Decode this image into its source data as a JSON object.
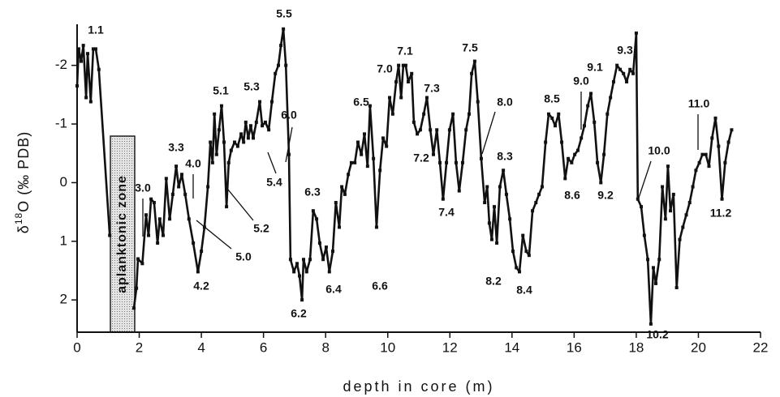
{
  "chart_data": {
    "type": "line",
    "xlabel": "depth in core (m)",
    "ylabel": {
      "prefix": "δ",
      "sup": "18",
      "rest": "O (‰ PDB)"
    },
    "zone_label": "aplanktonic zone",
    "xlim": [
      0,
      22
    ],
    "xticks": [
      0,
      2,
      4,
      6,
      8,
      10,
      12,
      14,
      16,
      18,
      20,
      22
    ],
    "ylim": [
      -2.7,
      2.55
    ],
    "y_inverted": true,
    "yticks": [
      -2,
      -1,
      0,
      1,
      2
    ],
    "grid": false,
    "color": "#111111",
    "markers": true,
    "annotations": [
      "1.1",
      "3.0",
      "3.3",
      "4.0",
      "4.2",
      "5.0",
      "5.1",
      "5.2",
      "5.3",
      "5.4",
      "5.5",
      "6.0",
      "6.2",
      "6.3",
      "6.4",
      "6.5",
      "6.6",
      "7.0",
      "7.1",
      "7.2",
      "7.3",
      "7.4",
      "7.5",
      "8.0",
      "8.2",
      "8.3",
      "8.4",
      "8.5",
      "8.6",
      "9.0",
      "9.1",
      "9.2",
      "9.3",
      "10.0",
      "10.2",
      "11.0",
      "11.2"
    ],
    "x": [
      0,
      0.05,
      0.13,
      0.2,
      0.29,
      0.34,
      0.44,
      0.52,
      0.6,
      0.7,
      1.05,
      null,
      1.83,
      1.91,
      1.96,
      2.1,
      2.22,
      2.3,
      2.38,
      2.48,
      2.59,
      2.66,
      2.77,
      2.87,
      2.98,
      3.08,
      3.19,
      3.27,
      3.37,
      3.48,
      3.6,
      3.74,
      3.89,
      4.0,
      4.1,
      4.21,
      4.29,
      4.36,
      4.42,
      4.49,
      4.57,
      4.65,
      4.73,
      4.81,
      4.88,
      4.96,
      5.07,
      5.17,
      5.28,
      5.36,
      5.43,
      5.51,
      5.59,
      5.67,
      5.77,
      5.88,
      5.96,
      6.06,
      6.17,
      6.27,
      6.38,
      6.48,
      6.56,
      6.64,
      6.72,
      6.82,
      6.87,
      6.98,
      7.08,
      7.16,
      7.24,
      7.29,
      7.39,
      7.5,
      7.6,
      7.71,
      7.81,
      7.92,
      8.02,
      8.12,
      8.23,
      8.33,
      8.44,
      8.52,
      8.62,
      8.73,
      8.83,
      8.94,
      9.04,
      9.15,
      9.25,
      9.35,
      9.43,
      9.54,
      9.64,
      9.75,
      9.85,
      9.96,
      10.06,
      10.16,
      10.27,
      10.35,
      10.43,
      10.5,
      10.58,
      10.66,
      10.77,
      10.84,
      10.95,
      11.05,
      11.16,
      11.26,
      11.37,
      11.47,
      11.58,
      11.68,
      11.78,
      11.89,
      11.99,
      12.1,
      12.2,
      12.3,
      12.41,
      12.52,
      12.62,
      12.7,
      12.8,
      12.9,
      13.01,
      13.12,
      13.2,
      13.27,
      13.35,
      13.43,
      13.51,
      13.61,
      13.72,
      13.82,
      13.93,
      14.03,
      14.14,
      14.24,
      14.35,
      14.46,
      14.55,
      14.66,
      14.77,
      14.87,
      14.97,
      15.08,
      15.18,
      15.29,
      15.39,
      15.5,
      15.6,
      15.71,
      15.81,
      15.92,
      16.02,
      16.12,
      16.23,
      16.33,
      16.44,
      16.54,
      16.65,
      16.75,
      16.86,
      16.96,
      17.07,
      17.17,
      17.27,
      17.38,
      17.48,
      17.59,
      17.69,
      17.8,
      17.9,
      18.0,
      18.05,
      18.16,
      18.26,
      18.37,
      18.47,
      18.55,
      18.63,
      18.74,
      18.84,
      18.94,
      19.02,
      19.1,
      19.2,
      19.3,
      19.4,
      19.5,
      19.61,
      19.72,
      19.82,
      19.92,
      20.03,
      20.13,
      20.24,
      20.34,
      20.44,
      20.55,
      20.65,
      20.76,
      20.86,
      20.97,
      21.07
    ],
    "values": [
      -1.65,
      -2.28,
      -2.07,
      -2.34,
      -1.45,
      -2.2,
      -1.38,
      -2.28,
      -2.28,
      -1.93,
      0.9,
      null,
      2.14,
      1.8,
      1.3,
      1.38,
      0.55,
      0.9,
      0.28,
      0.34,
      1.03,
      0.62,
      0.9,
      -0.07,
      0.62,
      0.2,
      -0.28,
      0.07,
      -0.14,
      0.2,
      0.62,
      1.03,
      1.52,
      1.17,
      0.76,
      0.07,
      -0.69,
      -0.34,
      -1.17,
      -0.48,
      -0.9,
      -1.31,
      -0.69,
      0.41,
      -0.34,
      -0.55,
      -0.69,
      -0.62,
      -0.83,
      -0.69,
      -1.03,
      -0.76,
      -0.97,
      -0.76,
      -1.03,
      -1.38,
      -0.97,
      -1.03,
      -0.9,
      -1.38,
      -1.86,
      -2.0,
      -2.34,
      -2.62,
      -2.0,
      -0.48,
      1.31,
      1.52,
      1.38,
      1.59,
      2.0,
      1.31,
      1.52,
      1.31,
      0.48,
      0.62,
      1.03,
      1.31,
      1.1,
      1.52,
      1.17,
      0.34,
      0.76,
      0.07,
      0.2,
      -0.14,
      -0.34,
      -0.34,
      -0.69,
      -0.48,
      -0.83,
      -0.28,
      -1.31,
      -0.41,
      0.76,
      -0.21,
      -0.76,
      -0.62,
      -1.45,
      -1.17,
      -1.72,
      -2.0,
      -1.45,
      -2.0,
      -2.0,
      -1.72,
      -1.86,
      -1.03,
      -0.83,
      -0.9,
      -1.17,
      -1.45,
      -0.9,
      -0.48,
      -0.9,
      -0.34,
      0.28,
      -0.34,
      -0.9,
      -1.17,
      -0.34,
      0.14,
      -0.34,
      -0.9,
      -1.17,
      -1.86,
      -2.07,
      -1.38,
      -0.41,
      0.34,
      0.07,
      0.69,
      0.97,
      0.41,
      1.03,
      0.07,
      -0.21,
      0.2,
      0.62,
      1.17,
      1.45,
      1.52,
      0.9,
      1.17,
      1.24,
      0.48,
      0.34,
      0.2,
      0.07,
      -0.69,
      -1.17,
      -1.1,
      -0.97,
      -1.17,
      -0.69,
      -0.07,
      -0.41,
      -0.34,
      -0.48,
      -0.55,
      -0.76,
      -0.97,
      -1.31,
      -1.52,
      -1.03,
      -0.34,
      0,
      -0.48,
      -1.17,
      -1.45,
      -1.72,
      -2.0,
      -1.93,
      -1.86,
      -1.72,
      -1.93,
      -1.86,
      -2.55,
      0.28,
      0.41,
      0.9,
      1.31,
      2.41,
      1.45,
      1.72,
      1.31,
      0.07,
      0.62,
      -0.28,
      0.48,
      0.2,
      1.79,
      0.97,
      0.76,
      0.55,
      0.34,
      0.07,
      -0.21,
      -0.34,
      -0.48,
      -0.48,
      -0.28,
      -0.76,
      -1.1,
      -0.62,
      0.28,
      -0.34,
      -0.69,
      -0.9
    ]
  }
}
